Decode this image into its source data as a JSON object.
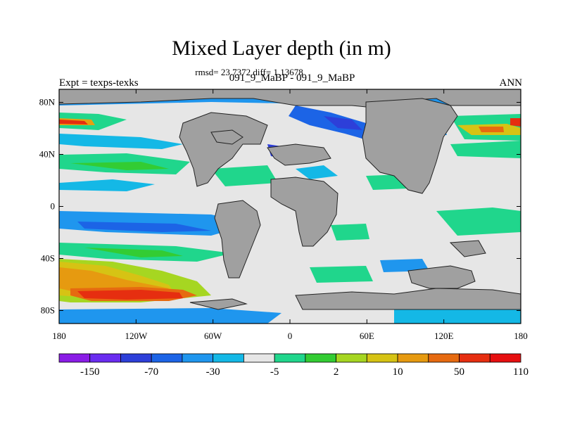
{
  "title": "Mixed Layer depth (in m)",
  "stats": "rmsd= 23.7372 diff= 1.13678",
  "left_label": "Expt = texps-texks",
  "center_label": "091_9_MaBP - 091_9_MaBP",
  "right_label": "ANN",
  "lat_ticks": [
    "80N",
    "40N",
    "0",
    "40S",
    "80S"
  ],
  "lon_ticks": [
    "180",
    "120W",
    "60W",
    "0",
    "60E",
    "120E",
    "180"
  ],
  "colorbar": {
    "colors": [
      "#8a1ce6",
      "#6a2cf0",
      "#2d3fd9",
      "#1c64e6",
      "#1f96ee",
      "#14b8e6",
      "#e6e6e6",
      "#20d68c",
      "#33cc33",
      "#a6d621",
      "#d6c314",
      "#e69a10",
      "#e66a10",
      "#e62e10",
      "#e60f10"
    ],
    "labels": [
      "-150",
      "-70",
      "-30",
      "-5",
      "2",
      "10",
      "50",
      "110"
    ]
  },
  "land_color": "#a0a0a0"
}
